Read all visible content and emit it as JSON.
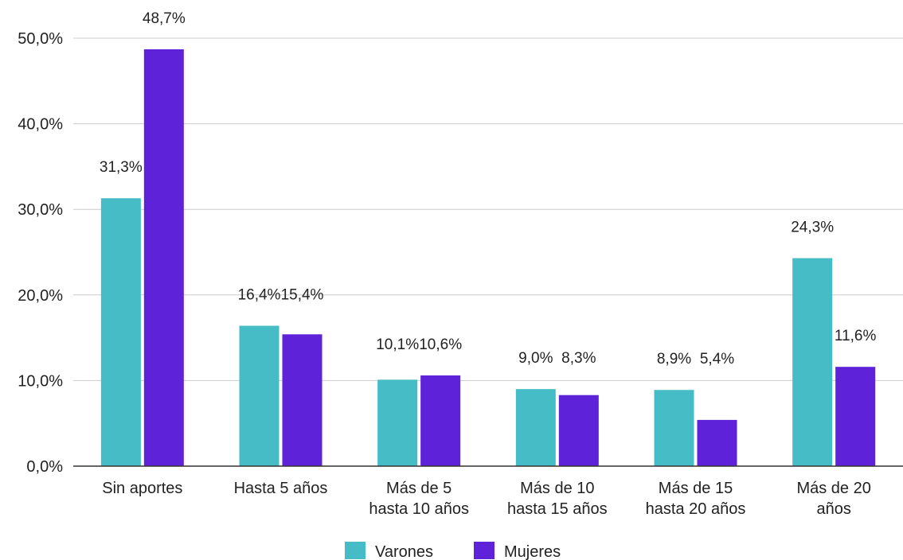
{
  "chart_data": {
    "type": "bar",
    "title": "",
    "xlabel": "",
    "ylabel": "",
    "categories": [
      [
        "Sin aportes"
      ],
      [
        "Hasta 5 años"
      ],
      [
        "Más de 5",
        "hasta 10 años"
      ],
      [
        "Más de 10",
        "hasta 15 años"
      ],
      [
        "Más de 15",
        "hasta 20 años"
      ],
      [
        "Más de 20",
        "años"
      ]
    ],
    "series": [
      {
        "name": "Varones",
        "color": "#46bdc6",
        "values": [
          31.3,
          16.4,
          10.1,
          9.0,
          8.9,
          24.3
        ],
        "labels": [
          "31,3%",
          "16,4%",
          "10,1%",
          "9,0%",
          "8,9%",
          "24,3%"
        ]
      },
      {
        "name": "Mujeres",
        "color": "#5e22d9",
        "values": [
          48.7,
          15.4,
          10.6,
          8.3,
          5.4,
          11.6
        ],
        "labels": [
          "48,7%",
          "15,4%",
          "10,6%",
          "8,3%",
          "5,4%",
          "11,6%"
        ]
      }
    ],
    "ylim": [
      0,
      50
    ],
    "yticks": [
      0,
      10,
      20,
      30,
      40,
      50
    ],
    "ytick_labels": [
      "0,0%",
      "10,0%",
      "20,0%",
      "30,0%",
      "40,0%",
      "50,0%"
    ],
    "grid": true,
    "legend_position": "bottom"
  }
}
